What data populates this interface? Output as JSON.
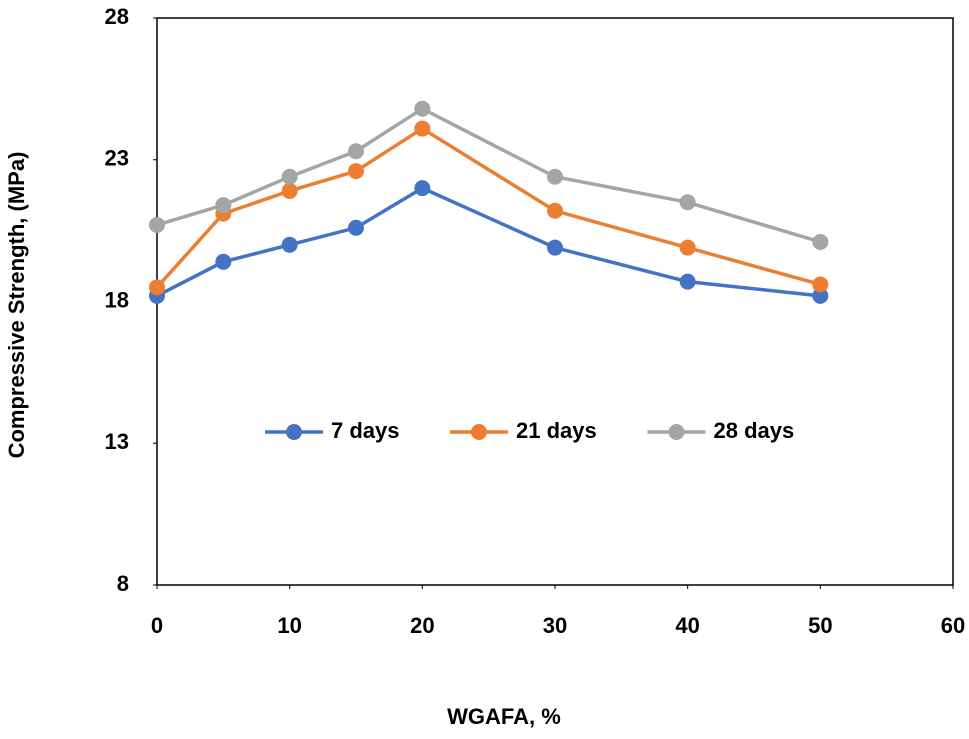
{
  "chart_data": {
    "type": "line",
    "x_label": "WGAFA, %",
    "y_label": "Compressive Strength, (MPa)",
    "x": [
      0,
      5,
      10,
      15,
      20,
      30,
      40,
      50
    ],
    "series": [
      {
        "name": "7 days",
        "color": "#4472c4",
        "values": [
          18.2,
          19.4,
          20.0,
          20.6,
          22.0,
          19.9,
          18.7,
          18.2
        ]
      },
      {
        "name": "21 days",
        "color": "#ed7d31",
        "values": [
          18.5,
          21.1,
          21.9,
          22.6,
          24.1,
          21.2,
          19.9,
          18.6
        ]
      },
      {
        "name": "28 days",
        "color": "#a5a5a5",
        "values": [
          20.7,
          21.4,
          22.4,
          23.3,
          24.8,
          22.4,
          21.5,
          20.1
        ]
      }
    ],
    "xlim": [
      0,
      60
    ],
    "xticks": [
      0,
      10,
      20,
      30,
      40,
      50,
      60
    ],
    "ylim": [
      8,
      28
    ],
    "yticks": [
      8,
      13,
      18,
      23,
      28
    ],
    "grid": false,
    "legend": "center"
  }
}
